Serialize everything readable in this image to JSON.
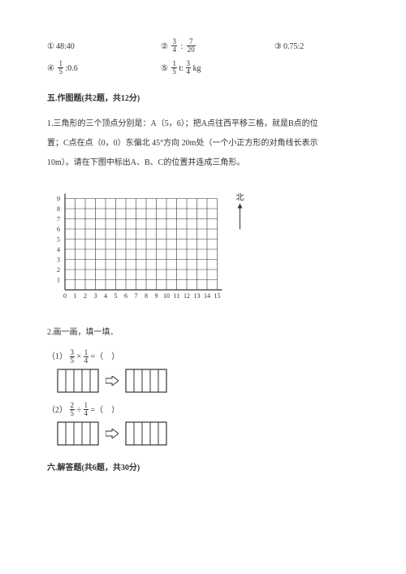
{
  "ratios": {
    "items": [
      {
        "num": "①",
        "exprA": "48:40"
      },
      {
        "num": "②",
        "f1n": "3",
        "f1d": "4",
        "sep": ":",
        "f2n": "7",
        "f2d": "20"
      },
      {
        "num": "③",
        "exprA": "0.75:2"
      },
      {
        "num": "④",
        "f1n": "1",
        "f1d": "5",
        "tail": ":0.6"
      },
      {
        "num": "⑤",
        "f1n": "1",
        "f1d": "5",
        "mid": " t: ",
        "f2n": "3",
        "f2d": "4",
        "tail2": " kg"
      }
    ]
  },
  "section5": {
    "heading": "五.作图题(共2题，共12分)",
    "q1_l1": "1.三角形的三个顶点分别是：A（5，6）；把A点往西平移三格，就是B点的位",
    "q1_l2": "置；C点在点（0，0）东偏北 45°方向 20m处（一个小正方形的对角线长表示",
    "q1_l3": "10m）。请在下图中标出A、B、C的位置并连成三角形。",
    "north": "北",
    "xlabels": [
      "0",
      "1",
      "2",
      "3",
      "4",
      "5",
      "6",
      "7",
      "8",
      "9",
      "10",
      "11",
      "12",
      "13",
      "14",
      "15"
    ],
    "ylabels": [
      "1",
      "2",
      "3",
      "4",
      "5",
      "6",
      "7",
      "8",
      "9"
    ],
    "q2": "2.画一画，填一填．"
  },
  "expr1": {
    "prefix": "（1）",
    "f1n": "3",
    "f1d": "5",
    "op": "×",
    "f2n": "1",
    "f2d": "4",
    "eq": "=（　）"
  },
  "expr2": {
    "prefix": "（2）",
    "f1n": "2",
    "f1d": "5",
    "op": "÷",
    "f2n": "1",
    "f2d": "4",
    "eq": "=（　）"
  },
  "section6": {
    "heading": "六.解答题(共6题，共30分)"
  },
  "style": {
    "gridStroke": "#333333",
    "rectStroke": "#333333",
    "arrowFill": "#333333"
  }
}
